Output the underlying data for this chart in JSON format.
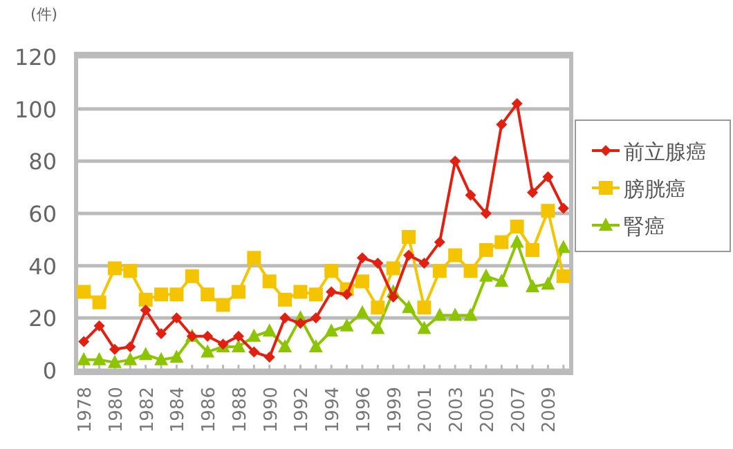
{
  "chart_data": {
    "type": "line",
    "ylabel": "(件)",
    "categories": [
      "1978",
      null,
      "1980",
      null,
      "1982",
      null,
      "1984",
      null,
      "1986",
      null,
      "1988",
      null,
      "1990",
      null,
      "1992",
      null,
      "1994",
      null,
      "1996",
      null,
      "1999",
      null,
      "2001",
      null,
      "2003",
      null,
      "2005",
      null,
      "2007",
      null,
      "2009",
      null
    ],
    "ylim": [
      0,
      120
    ],
    "yticks": [
      0,
      20,
      40,
      60,
      80,
      100,
      120
    ],
    "grid": "y",
    "legend": "right",
    "series": [
      {
        "name": "前立腺癌",
        "color": "#e02010",
        "marker": "diamond",
        "values": [
          11,
          17,
          8,
          9,
          23,
          14,
          20,
          13,
          13,
          10,
          13,
          7,
          5,
          20,
          18,
          20,
          30,
          29,
          43,
          41,
          28,
          44,
          41,
          49,
          80,
          67,
          60,
          94,
          102,
          68,
          74,
          62
        ]
      },
      {
        "name": "膀胱癌",
        "color": "#f5c400",
        "marker": "square",
        "values": [
          30,
          26,
          39,
          38,
          27,
          29,
          29,
          36,
          29,
          25,
          30,
          43,
          34,
          27,
          30,
          29,
          38,
          31,
          34,
          24,
          39,
          51,
          24,
          38,
          44,
          38,
          46,
          49,
          55,
          46,
          61,
          36
        ]
      },
      {
        "name": "腎癌",
        "color": "#8cc400",
        "marker": "triangle",
        "values": [
          4,
          4,
          3,
          4,
          6,
          4,
          5,
          13,
          7,
          9,
          9,
          13,
          15,
          9,
          20,
          9,
          15,
          17,
          22,
          16,
          30,
          24,
          16,
          21,
          21,
          21,
          36,
          34,
          49,
          32,
          33,
          47
        ]
      }
    ]
  }
}
